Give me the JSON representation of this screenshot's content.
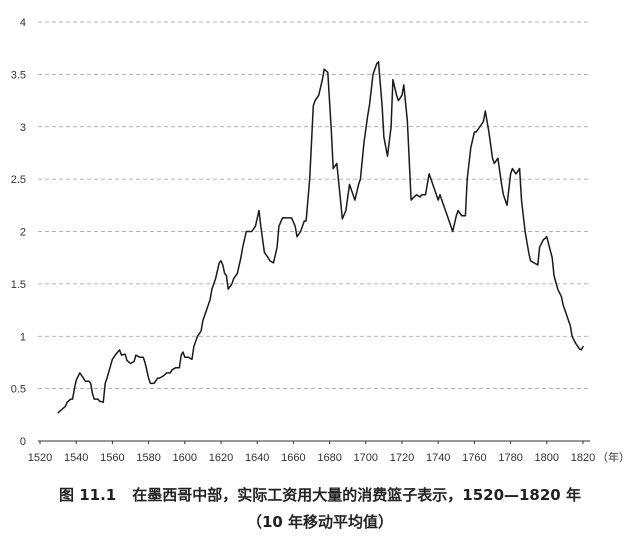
{
  "chart_data": {
    "type": "line",
    "figure_label": "图 11.1",
    "title": "在墨西哥中部，实际工资用大量的消费篮子表示，1520—1820 年",
    "subtitle": "（10 年移动平均值）",
    "xlabel": "（年）",
    "xlim": [
      1520,
      1820
    ],
    "ylim": [
      0,
      4
    ],
    "grid": true,
    "x_ticks": [
      1520,
      1540,
      1560,
      1580,
      1600,
      1620,
      1640,
      1660,
      1680,
      1700,
      1720,
      1740,
      1760,
      1780,
      1800,
      1820
    ],
    "x_tick_labels": [
      "1520",
      "1540",
      "1560",
      "1580",
      "1600",
      "1620",
      "1640",
      "1660",
      "1680",
      "1700",
      "1720",
      "1740",
      "1760",
      "1780",
      "1800",
      "1820"
    ],
    "y_ticks": [
      0,
      0.5,
      1,
      1.5,
      2,
      2.5,
      3,
      3.5,
      4
    ],
    "y_tick_labels": [
      "0",
      "0.5",
      "1",
      "1.5",
      "2",
      "2.5",
      "3",
      "3.5",
      "4"
    ],
    "x": [
      1530,
      1532,
      1534,
      1535,
      1537,
      1538,
      1539,
      1540,
      1542,
      1544,
      1545,
      1547,
      1548,
      1549,
      1550,
      1552,
      1553,
      1555,
      1556,
      1557,
      1559,
      1560,
      1562,
      1564,
      1565,
      1567,
      1568,
      1570,
      1572,
      1573,
      1575,
      1577,
      1578,
      1580,
      1581,
      1583,
      1585,
      1586,
      1588,
      1590,
      1592,
      1593,
      1595,
      1597,
      1598,
      1599,
      1600,
      1602,
      1604,
      1605,
      1607,
      1609,
      1610,
      1612,
      1614,
      1615,
      1617,
      1619,
      1620,
      1621,
      1622,
      1623,
      1624,
      1626,
      1627,
      1629,
      1631,
      1632,
      1634,
      1636,
      1637,
      1639,
      1641,
      1642,
      1644,
      1646,
      1647,
      1649,
      1651,
      1652,
      1654,
      1656,
      1657,
      1659,
      1661,
      1662,
      1664,
      1666,
      1667,
      1669,
      1671,
      1672,
      1674,
      1676,
      1677,
      1679,
      1681,
      1682,
      1684,
      1686,
      1687,
      1689,
      1691,
      1692,
      1694,
      1696,
      1697,
      1699,
      1701,
      1702,
      1704,
      1706,
      1707,
      1709,
      1710,
      1712,
      1714,
      1715,
      1717,
      1718,
      1720,
      1721,
      1723,
      1725,
      1726,
      1728,
      1730,
      1731,
      1733,
      1735,
      1736,
      1738,
      1740,
      1741,
      1743,
      1745,
      1746,
      1748,
      1750,
      1751,
      1753,
      1755,
      1756,
      1758,
      1760,
      1761,
      1763,
      1765,
      1766,
      1768,
      1770,
      1771,
      1773,
      1775,
      1776,
      1778,
      1780,
      1781,
      1783,
      1785,
      1786,
      1788,
      1790,
      1791,
      1793,
      1795,
      1796,
      1798,
      1800,
      1801,
      1803,
      1804,
      1806,
      1808,
      1809,
      1811,
      1813,
      1814,
      1816,
      1818,
      1819,
      1820
    ],
    "series": [
      {
        "values": [
          0.27,
          0.3,
          0.33,
          0.37,
          0.4,
          0.4,
          0.5,
          0.58,
          0.65,
          0.6,
          0.57,
          0.57,
          0.55,
          0.45,
          0.4,
          0.4,
          0.38,
          0.37,
          0.55,
          0.6,
          0.72,
          0.78,
          0.83,
          0.87,
          0.82,
          0.83,
          0.77,
          0.74,
          0.76,
          0.82,
          0.8,
          0.8,
          0.75,
          0.6,
          0.55,
          0.55,
          0.6,
          0.6,
          0.62,
          0.65,
          0.65,
          0.68,
          0.7,
          0.7,
          0.82,
          0.85,
          0.8,
          0.8,
          0.78,
          0.9,
          1.0,
          1.05,
          1.15,
          1.25,
          1.35,
          1.45,
          1.55,
          1.7,
          1.72,
          1.68,
          1.6,
          1.58,
          1.45,
          1.5,
          1.55,
          1.6,
          1.75,
          1.85,
          2.0,
          2.0,
          2.0,
          2.05,
          2.2,
          2.05,
          1.8,
          1.75,
          1.72,
          1.7,
          1.85,
          2.05,
          2.13,
          2.13,
          2.13,
          2.13,
          2.05,
          1.95,
          2.0,
          2.1,
          2.1,
          2.5,
          3.2,
          3.25,
          3.3,
          3.45,
          3.55,
          3.52,
          2.95,
          2.6,
          2.65,
          2.3,
          2.12,
          2.2,
          2.45,
          2.4,
          2.3,
          2.45,
          2.5,
          2.85,
          3.1,
          3.2,
          3.5,
          3.6,
          3.62,
          3.2,
          2.9,
          2.72,
          3.0,
          3.45,
          3.3,
          3.25,
          3.3,
          3.4,
          3.05,
          2.3,
          2.32,
          2.35,
          2.33,
          2.35,
          2.35,
          2.55,
          2.5,
          2.4,
          2.3,
          2.35,
          2.25,
          2.15,
          2.1,
          2.0,
          2.15,
          2.2,
          2.15,
          2.15,
          2.5,
          2.8,
          2.95,
          2.95,
          3.0,
          3.05,
          3.15,
          2.95,
          2.7,
          2.65,
          2.7,
          2.45,
          2.35,
          2.25,
          2.55,
          2.6,
          2.55,
          2.6,
          2.3,
          2.0,
          1.8,
          1.72,
          1.7,
          1.68,
          1.85,
          1.92,
          1.95,
          1.88,
          1.75,
          1.58,
          1.45,
          1.38,
          1.3,
          1.2,
          1.1,
          1.0,
          0.93,
          0.88,
          0.87,
          0.9
        ]
      }
    ]
  },
  "colors": {
    "line": "#1a1a1a",
    "grid": "#9a9a9a",
    "axis": "#333333"
  }
}
